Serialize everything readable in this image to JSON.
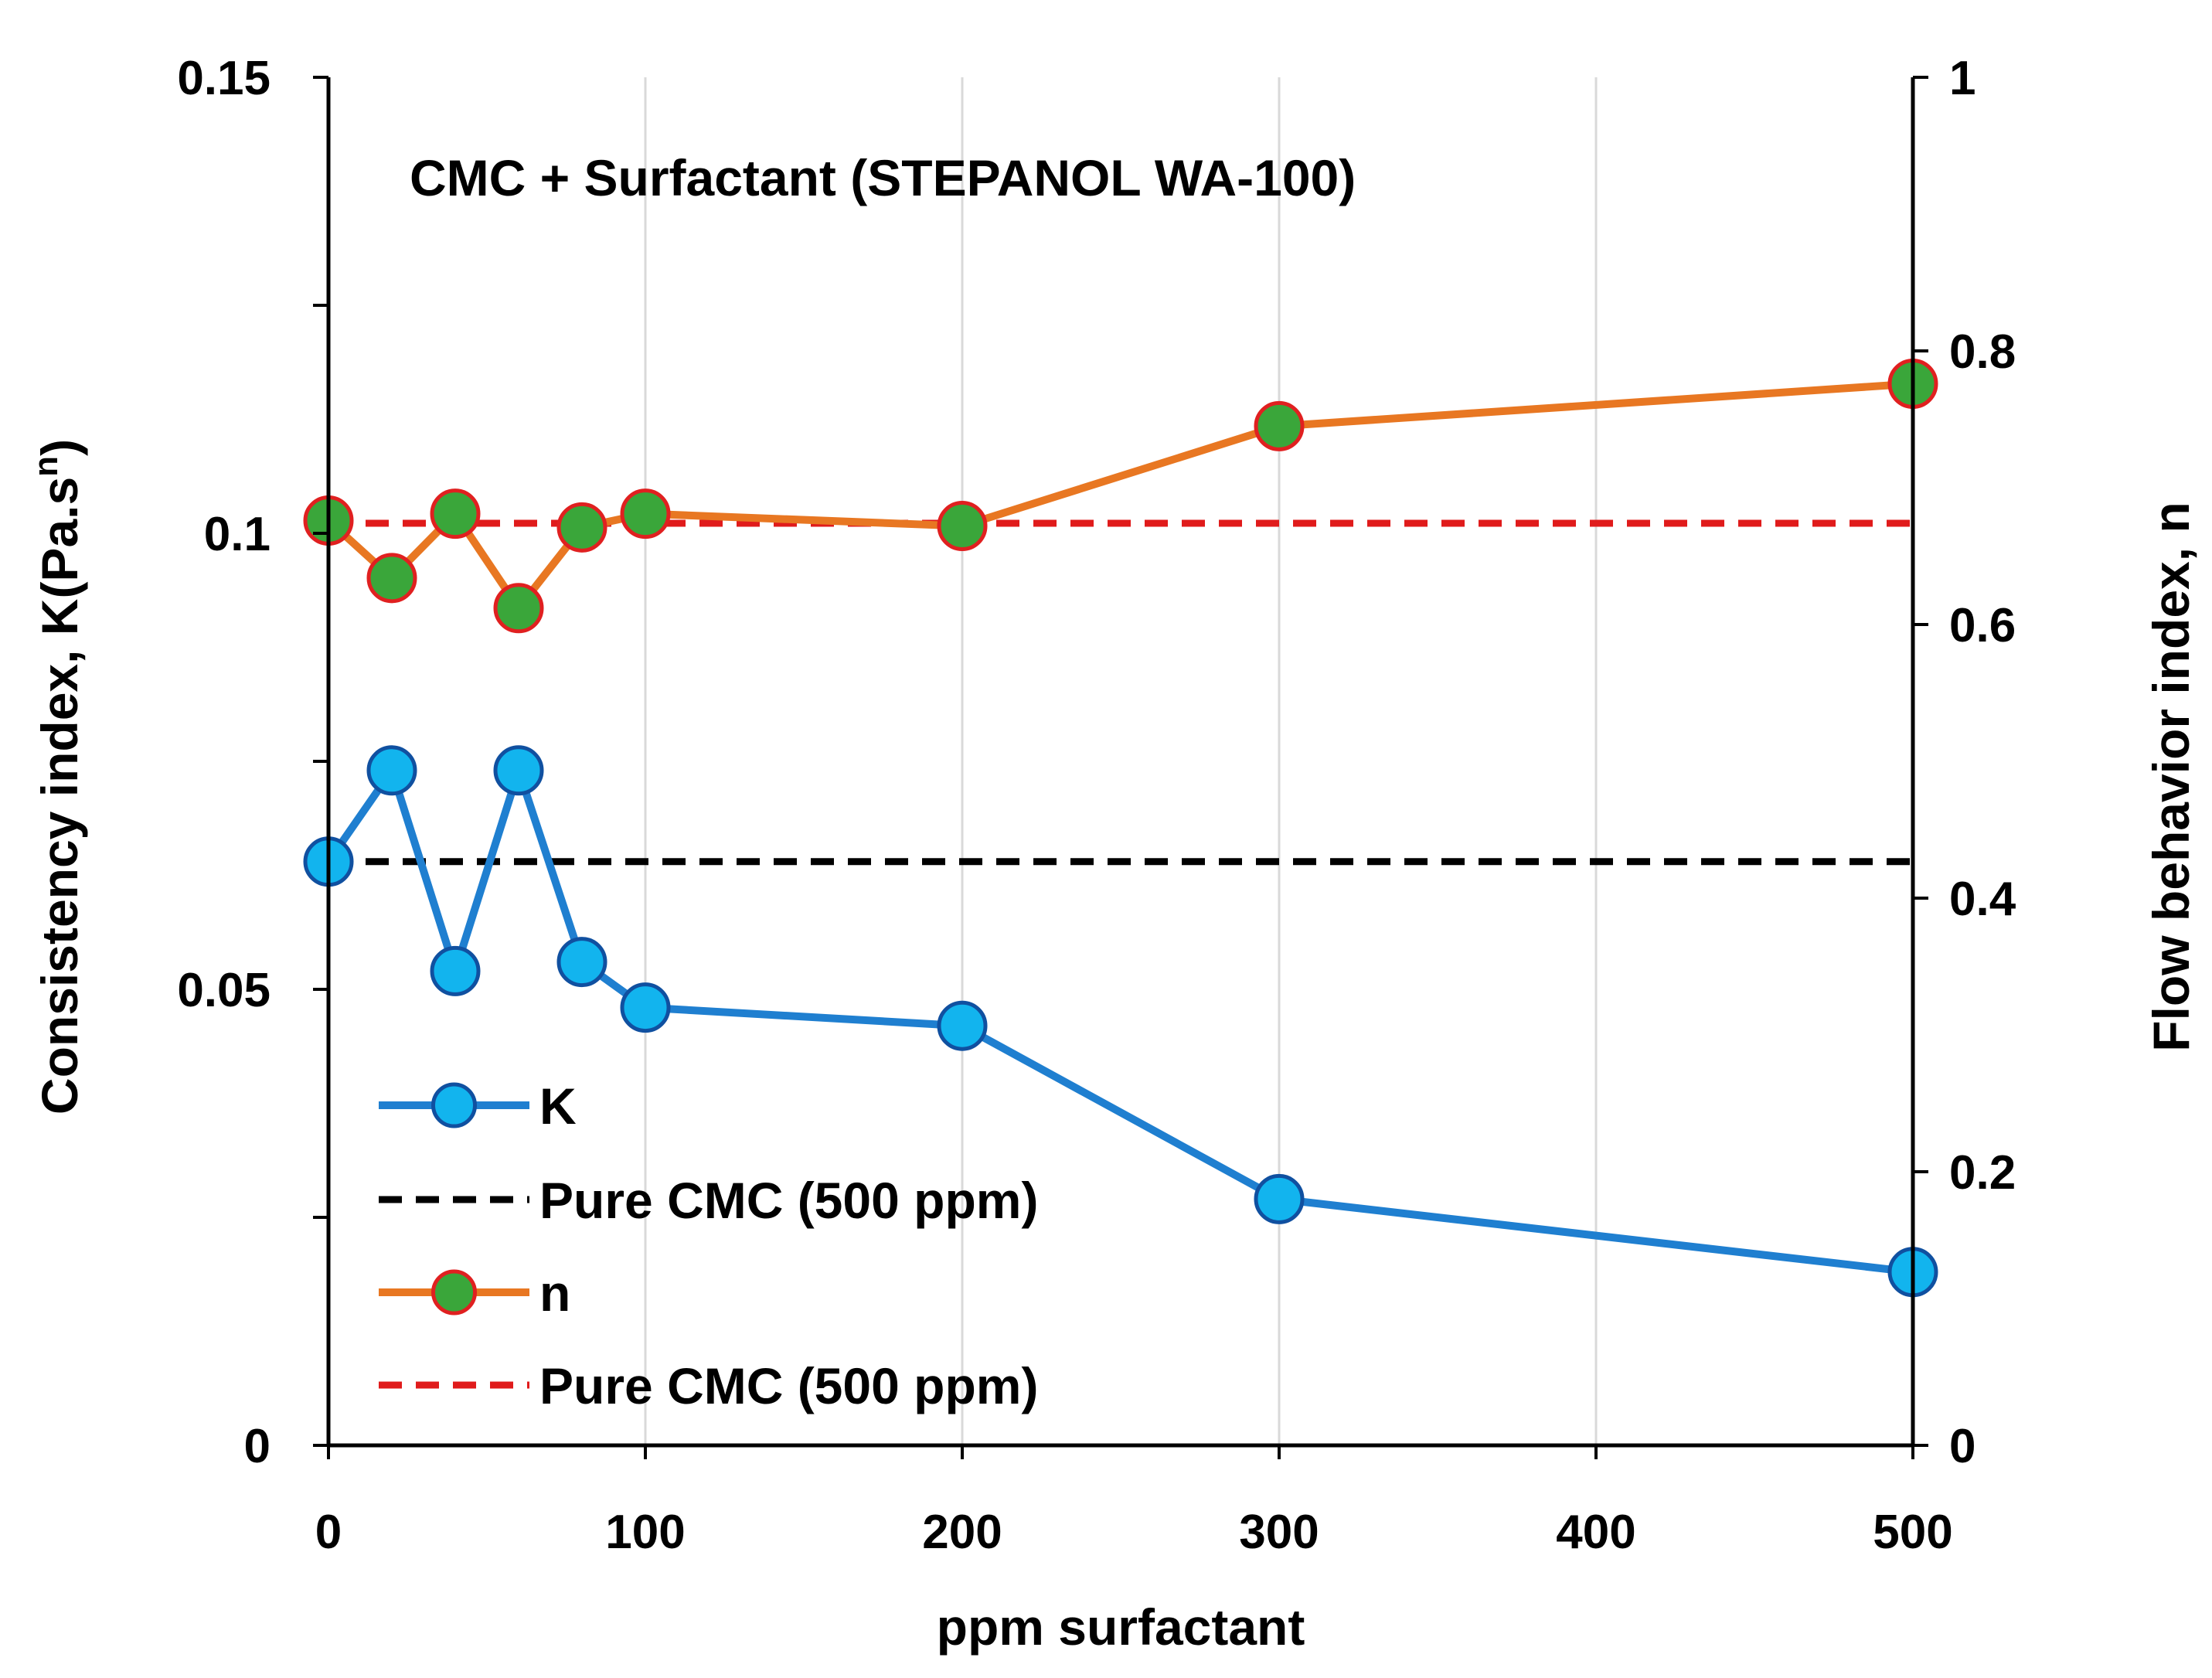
{
  "chart_data": {
    "type": "line",
    "annotation": "CMC + Surfactant (STEPANOL WA-100)",
    "xlabel": "ppm surfactant",
    "ylabel_left_prefix": "Consistency index, K(Pa.s",
    "ylabel_left_sup": "n",
    "ylabel_left_suffix": ")",
    "ylabel_right": "Flow behavior index, n",
    "x_axis": {
      "min": 0,
      "max": 500,
      "ticks": [
        0,
        100,
        200,
        300,
        400,
        500
      ],
      "tick_labels": [
        "0",
        "100",
        "200",
        "300",
        "400",
        "500"
      ]
    },
    "y_left": {
      "min": 0,
      "max": 0.15,
      "labeled_ticks": [
        0,
        0.05,
        0.1,
        0.15
      ],
      "tick_labels": [
        "0",
        "0.05",
        "0.1",
        "0.15"
      ],
      "minor_ticks": [
        0.025,
        0.075,
        0.125
      ]
    },
    "y_right": {
      "min": 0,
      "max": 1,
      "ticks": [
        0,
        0.2,
        0.4,
        0.6,
        0.8,
        1
      ],
      "tick_labels": [
        "0",
        "0.2",
        "0.4",
        "0.6",
        "0.8",
        "1"
      ]
    },
    "grid": "vertical",
    "legend_position": "bottom-left",
    "series": [
      {
        "name": "K",
        "axis": "left",
        "style": "line-marker",
        "color": "#1f7fd0",
        "marker_fill": "#12b4ee",
        "marker_edge": "#1050a0",
        "x": [
          0,
          20,
          40,
          60,
          80,
          100,
          200,
          300,
          500
        ],
        "values": [
          0.064,
          0.074,
          0.052,
          0.074,
          0.053,
          0.048,
          0.046,
          0.027,
          0.019
        ]
      },
      {
        "name": "Pure CMC (500 ppm)",
        "axis": "left",
        "style": "dashed",
        "color": "#000000",
        "value": 0.064
      },
      {
        "name": "n",
        "axis": "right",
        "style": "line-marker",
        "color": "#e87722",
        "marker_fill": "#3aa63a",
        "marker_edge": "#e02020",
        "x": [
          0,
          20,
          40,
          60,
          80,
          100,
          200,
          300,
          500
        ],
        "values": [
          0.676,
          0.634,
          0.681,
          0.612,
          0.671,
          0.681,
          0.672,
          0.745,
          0.776
        ]
      },
      {
        "name": "Pure CMC (500 ppm)",
        "axis": "right",
        "style": "dashed",
        "color": "#e01b1b",
        "value": 0.674
      }
    ]
  }
}
